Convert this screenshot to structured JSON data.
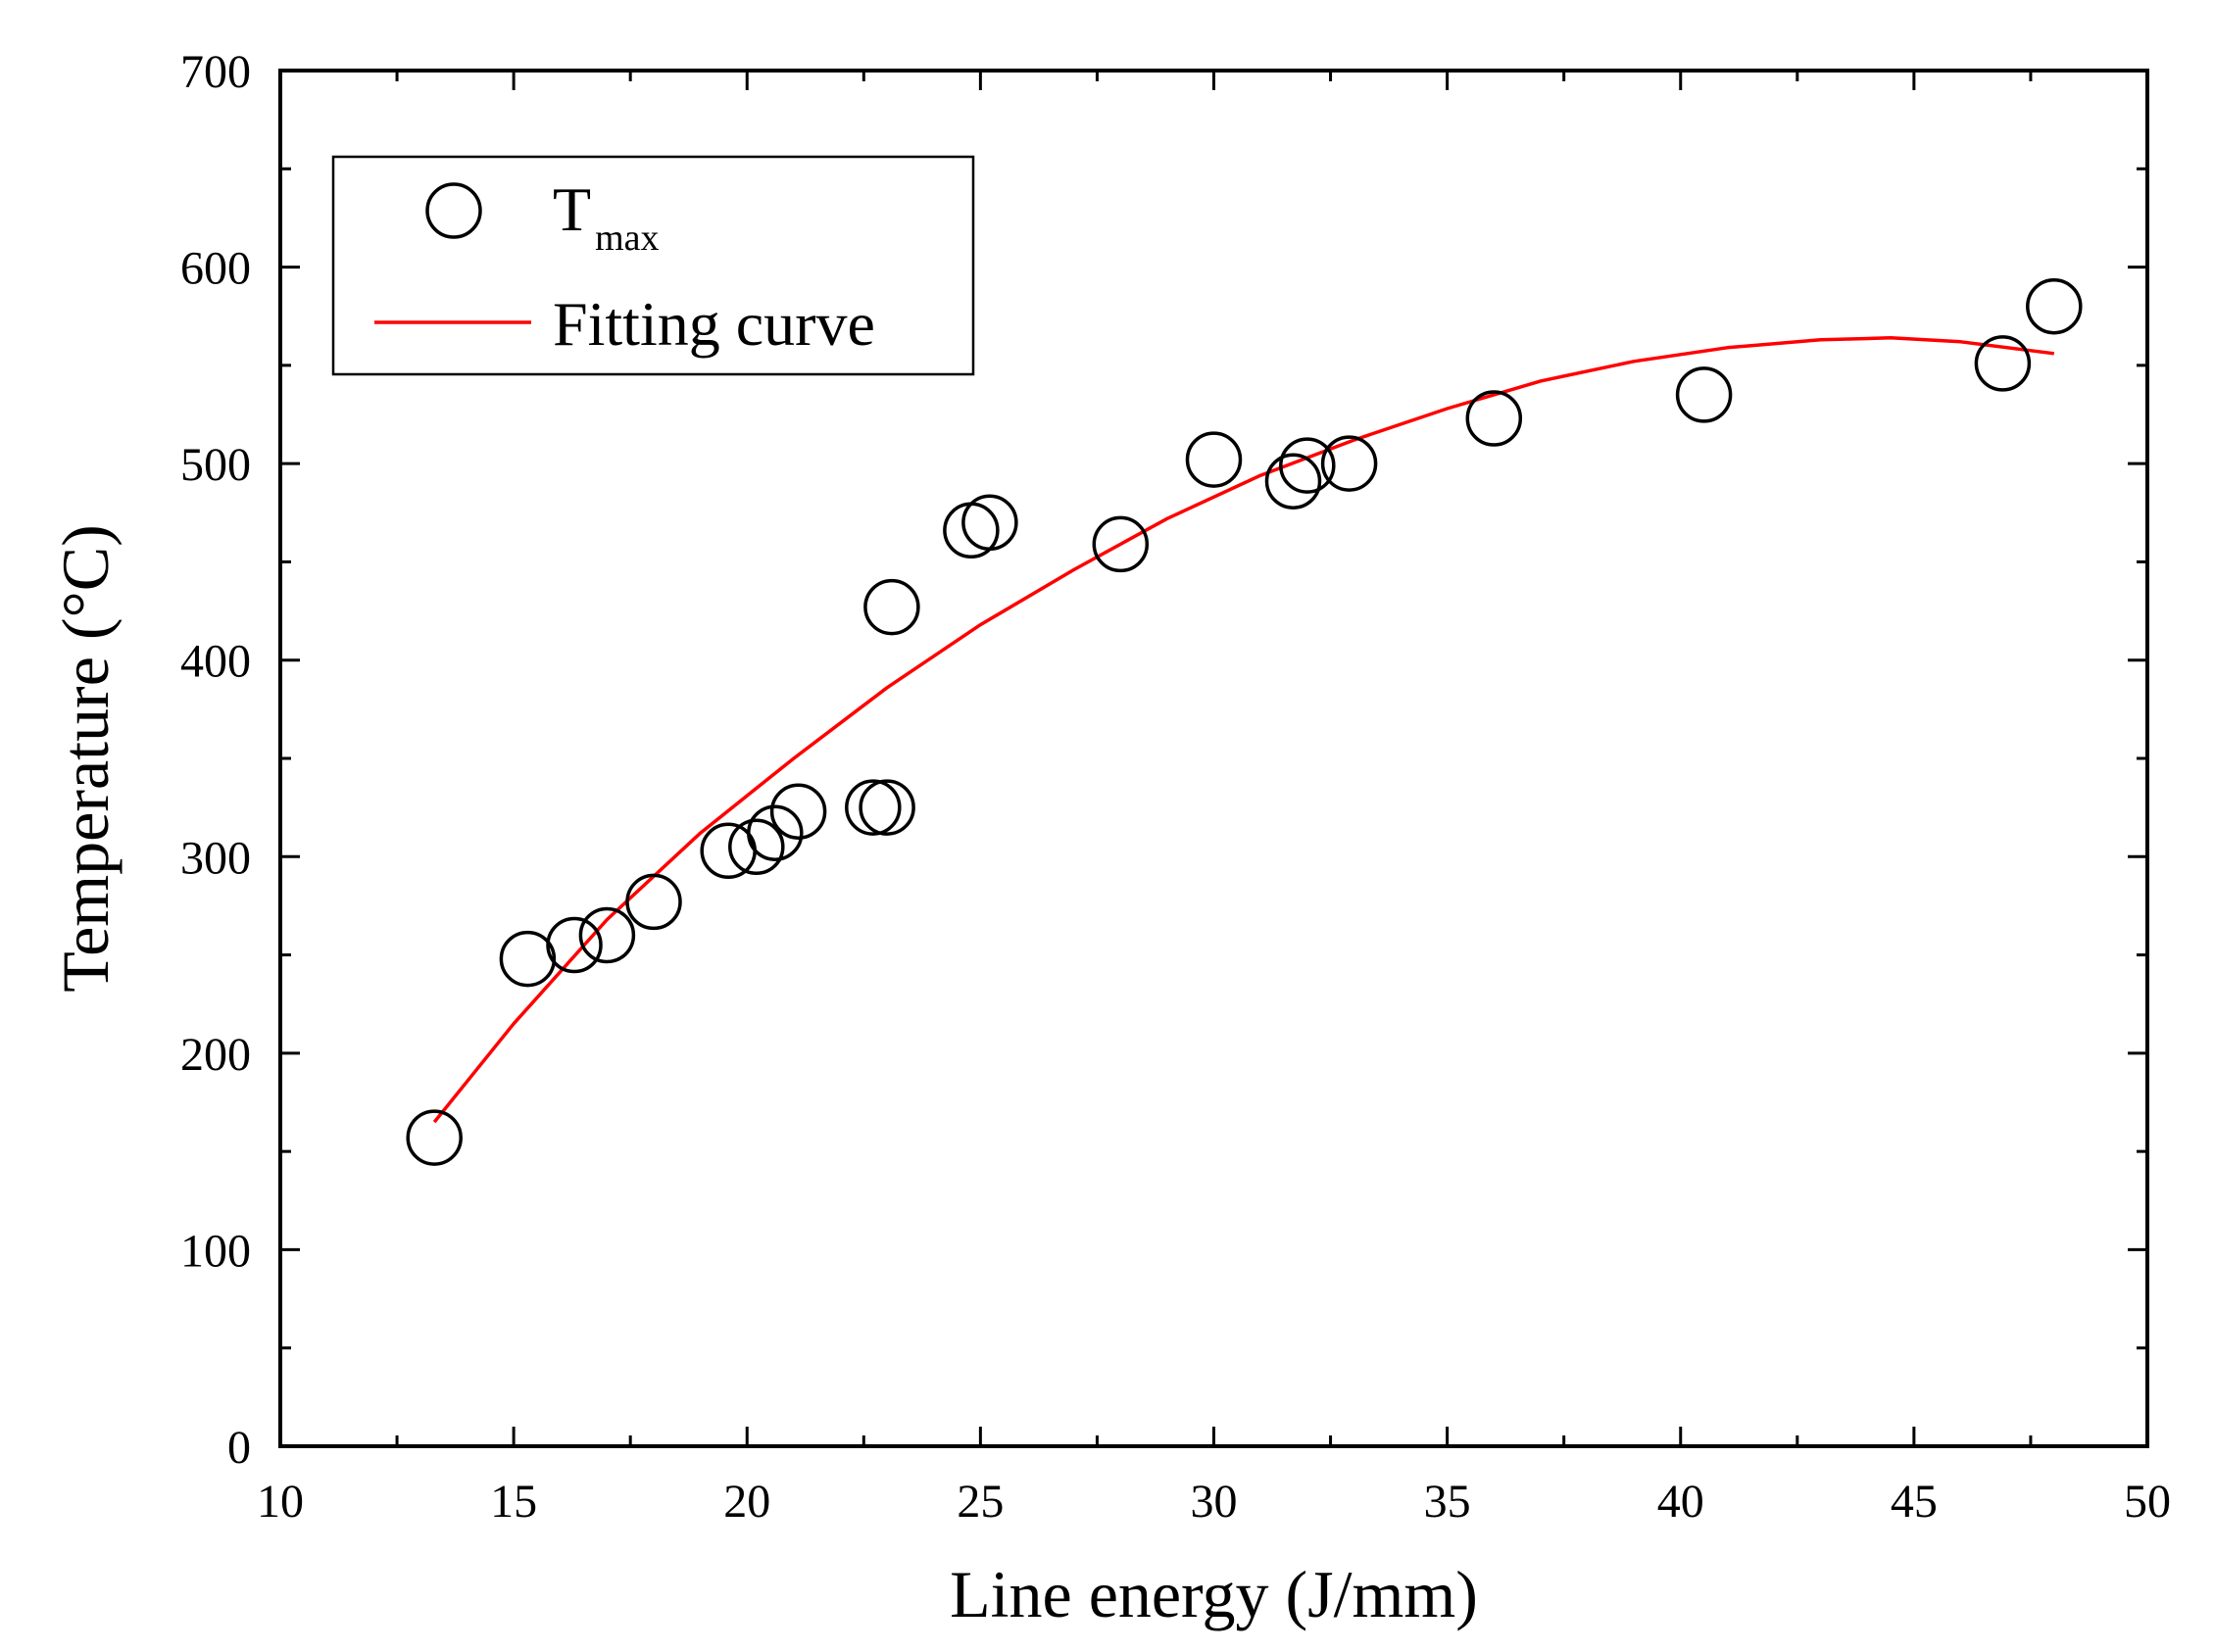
{
  "chart_data": {
    "type": "scatter",
    "xlabel": "Line energy (J/mm)",
    "ylabel": "Temperature (°C)",
    "xlim": [
      10,
      50
    ],
    "ylim": [
      0,
      700
    ],
    "x_ticks": [
      "10",
      "15",
      "20",
      "25",
      "30",
      "35",
      "40",
      "45",
      "50"
    ],
    "y_ticks": [
      "0",
      "100",
      "200",
      "300",
      "400",
      "500",
      "600",
      "700"
    ],
    "grid": false,
    "legend_position": "top-left",
    "series": [
      {
        "name": "T",
        "name_subscript": "max",
        "marker": "open-circle",
        "color": "#000000",
        "points": [
          [
            13.3,
            157
          ],
          [
            15.3,
            248
          ],
          [
            16.3,
            255
          ],
          [
            17.0,
            260
          ],
          [
            18.0,
            277
          ],
          [
            19.6,
            303
          ],
          [
            20.2,
            305
          ],
          [
            20.6,
            312
          ],
          [
            21.1,
            323
          ],
          [
            22.7,
            325
          ],
          [
            23.0,
            325
          ],
          [
            23.1,
            427
          ],
          [
            24.8,
            466
          ],
          [
            25.2,
            470
          ],
          [
            28.0,
            459
          ],
          [
            30.0,
            502
          ],
          [
            31.7,
            491
          ],
          [
            32.0,
            499
          ],
          [
            32.9,
            500
          ],
          [
            36.0,
            523
          ],
          [
            40.5,
            535
          ],
          [
            46.9,
            551
          ],
          [
            48.0,
            580
          ]
        ]
      },
      {
        "name": "Fitting curve",
        "type": "line",
        "color": "#ff0000",
        "points": [
          [
            13.3,
            165
          ],
          [
            15,
            215
          ],
          [
            17,
            268
          ],
          [
            19,
            312
          ],
          [
            21,
            350
          ],
          [
            23,
            386
          ],
          [
            25,
            418
          ],
          [
            27,
            446
          ],
          [
            29,
            472
          ],
          [
            31,
            494
          ],
          [
            33,
            512
          ],
          [
            35,
            528
          ],
          [
            37,
            542
          ],
          [
            39,
            552
          ],
          [
            41,
            559
          ],
          [
            43,
            563
          ],
          [
            44.5,
            564
          ],
          [
            46,
            562
          ],
          [
            48,
            556
          ]
        ]
      }
    ]
  }
}
